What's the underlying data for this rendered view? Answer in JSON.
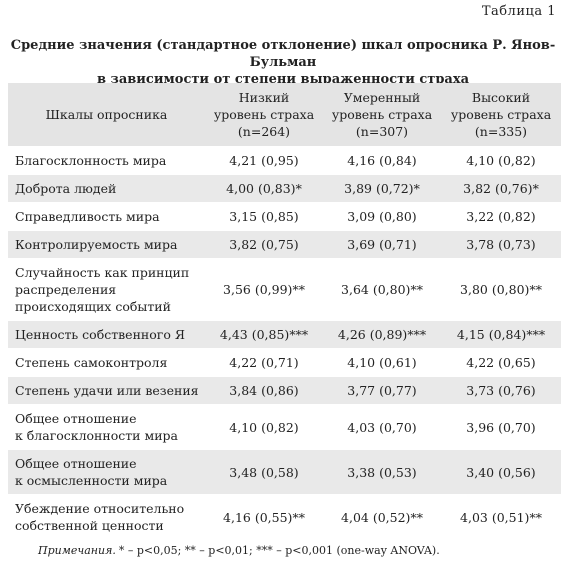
{
  "caption": "Таблица 1",
  "title": [
    "Средние значения (стандартное отклонение) шкал опросника Р. Янов-Бульман",
    "в зависимости от степени выраженности страха"
  ],
  "table": {
    "header": [
      [
        "Шкалы опросника"
      ],
      [
        "Низкий",
        "уровень страха",
        "(n=264)"
      ],
      [
        "Умеренный",
        "уровень страха",
        "(n=307)"
      ],
      [
        "Высокий",
        "уровень страха",
        "(n=335)"
      ]
    ],
    "rows": [
      [
        [
          "Благосклонность мира"
        ],
        [
          "4,21 (0,95)"
        ],
        [
          "4,16 (0,84)"
        ],
        [
          "4,10 (0,82)"
        ]
      ],
      [
        [
          "Доброта людей"
        ],
        [
          "4,00 (0,83)*"
        ],
        [
          "3,89 (0,72)*"
        ],
        [
          "3,82 (0,76)*"
        ]
      ],
      [
        [
          "Справедливость мира"
        ],
        [
          "3,15 (0,85)"
        ],
        [
          "3,09 (0,80)"
        ],
        [
          "3,22 (0,82)"
        ]
      ],
      [
        [
          "Контролируемость мира"
        ],
        [
          "3,82 (0,75)"
        ],
        [
          "3,69 (0,71)"
        ],
        [
          "3,78 (0,73)"
        ]
      ],
      [
        [
          "Случайность как принцип",
          "распределения",
          "происходящих событий"
        ],
        [
          "3,56 (0,99)**"
        ],
        [
          "3,64 (0,80)**"
        ],
        [
          "3,80 (0,80)**"
        ]
      ],
      [
        [
          "Ценность собственного Я"
        ],
        [
          "4,43 (0,85)***"
        ],
        [
          "4,26 (0,89)***"
        ],
        [
          "4,15 (0,84)***"
        ]
      ],
      [
        [
          "Степень самоконтроля"
        ],
        [
          "4,22 (0,71)"
        ],
        [
          "4,10 (0,61)"
        ],
        [
          "4,22 (0,65)"
        ]
      ],
      [
        [
          "Степень удачи или везения"
        ],
        [
          "3,84 (0,86)"
        ],
        [
          "3,77 (0,77)"
        ],
        [
          "3,73 (0,76)"
        ]
      ],
      [
        [
          "Общее отношение",
          "к благосклонности мира"
        ],
        [
          "4,10 (0,82)"
        ],
        [
          "4,03 (0,70)"
        ],
        [
          "3,96 (0,70)"
        ]
      ],
      [
        [
          "Общее отношение",
          "к осмысленности мира"
        ],
        [
          "3,48 (0,58)"
        ],
        [
          "3,38 (0,53)"
        ],
        [
          "3,40 (0,56)"
        ]
      ],
      [
        [
          "Убеждение относительно",
          "собственной ценности"
        ],
        [
          "4,16 (0,55)**"
        ],
        [
          "4,04 (0,52)**"
        ],
        [
          "4,03 (0,51)**"
        ]
      ]
    ]
  },
  "note": {
    "label": "Примечания.",
    "text": "* – p<0,05; ** – p<0,01; *** – p<0,001 (one-way ANOVA)."
  }
}
